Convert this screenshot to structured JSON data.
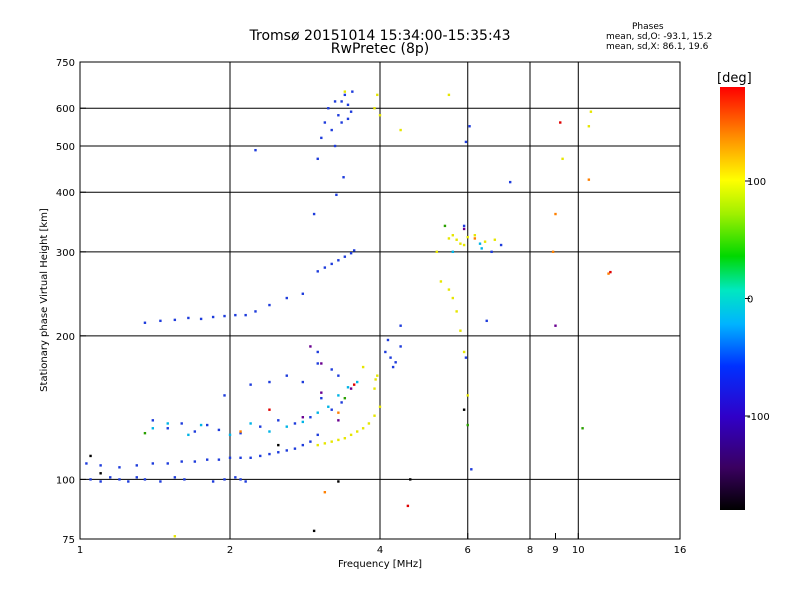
{
  "chart_data": {
    "type": "scatter",
    "title": "Tromsø 20151014 15:34:00-15:35:43",
    "subtitle": "RwPretec (8p)",
    "xlabel": "Frequency [MHz]",
    "ylabel": "Stationary phase Virtual Height [km]",
    "xscale": "log",
    "yscale": "log",
    "xlim": [
      1,
      16
    ],
    "ylim": [
      75,
      750
    ],
    "grid": true,
    "xticks": [
      1,
      2,
      4,
      6,
      8,
      9,
      10,
      16
    ],
    "xtick_labels": [
      "1",
      "2",
      "4",
      "6",
      "8",
      "9",
      "10",
      "16"
    ],
    "xgrid": [
      2,
      4,
      6,
      8,
      10
    ],
    "yticks": [
      75,
      100,
      200,
      300,
      400,
      500,
      600,
      750
    ],
    "ytick_labels": [
      "75",
      "100",
      "200",
      "300",
      "400",
      "500",
      "600",
      "750"
    ],
    "ygrid": [
      100,
      200,
      300,
      400,
      500,
      600
    ],
    "colorbar": {
      "label": "[deg]",
      "range": [
        -180,
        180
      ],
      "ticks": [
        100,
        0,
        -100
      ],
      "tick_labels": [
        "100",
        "0",
        "-100"
      ]
    },
    "phases": {
      "heading": "Phases",
      "line_o": "mean, sd,O: -93.1, 15.2",
      "line_x": "mean, sd,X:  86.1, 19.6"
    },
    "series": [
      {
        "color": "#1e3cdc",
        "points": [
          [
            1.03,
            108
          ],
          [
            1.1,
            107
          ],
          [
            1.2,
            106
          ],
          [
            1.3,
            107
          ],
          [
            1.4,
            108
          ],
          [
            1.5,
            108
          ],
          [
            1.6,
            109
          ],
          [
            1.7,
            109
          ],
          [
            1.8,
            110
          ],
          [
            1.9,
            110
          ],
          [
            2.0,
            111
          ],
          [
            2.1,
            111
          ],
          [
            2.2,
            111
          ],
          [
            2.3,
            112
          ],
          [
            2.4,
            113
          ],
          [
            2.5,
            114
          ],
          [
            2.6,
            115
          ],
          [
            2.7,
            116
          ],
          [
            2.8,
            118
          ],
          [
            2.9,
            120
          ],
          [
            3.0,
            124
          ],
          [
            1.05,
            100
          ],
          [
            1.1,
            99
          ],
          [
            1.15,
            101
          ],
          [
            1.2,
            100
          ],
          [
            1.25,
            99
          ],
          [
            1.3,
            101
          ],
          [
            1.35,
            100
          ],
          [
            1.45,
            99
          ],
          [
            1.55,
            101
          ],
          [
            1.62,
            100
          ],
          [
            1.85,
            99
          ],
          [
            1.95,
            100
          ],
          [
            2.05,
            101
          ],
          [
            2.1,
            100
          ],
          [
            2.15,
            99
          ],
          [
            1.35,
            213
          ],
          [
            1.45,
            215
          ],
          [
            1.55,
            216
          ],
          [
            1.65,
            218
          ],
          [
            1.75,
            217
          ],
          [
            1.85,
            219
          ],
          [
            1.95,
            220
          ],
          [
            2.05,
            221
          ],
          [
            2.15,
            221
          ],
          [
            2.25,
            225
          ],
          [
            2.4,
            232
          ],
          [
            2.6,
            240
          ],
          [
            2.8,
            245
          ],
          [
            3.0,
            273
          ],
          [
            3.1,
            278
          ],
          [
            3.2,
            283
          ],
          [
            3.3,
            288
          ],
          [
            3.4,
            293
          ],
          [
            3.5,
            298
          ],
          [
            3.55,
            302
          ],
          [
            3.0,
            470
          ],
          [
            3.05,
            520
          ],
          [
            3.1,
            560
          ],
          [
            3.15,
            600
          ],
          [
            3.2,
            540
          ],
          [
            3.25,
            500
          ],
          [
            3.3,
            580
          ],
          [
            3.35,
            620
          ],
          [
            3.4,
            640
          ],
          [
            3.45,
            610
          ],
          [
            3.5,
            590
          ],
          [
            3.52,
            650
          ],
          [
            3.35,
            560
          ],
          [
            3.25,
            620
          ],
          [
            3.45,
            570
          ],
          [
            3.27,
            395
          ],
          [
            3.38,
            430
          ],
          [
            2.95,
            360
          ],
          [
            2.25,
            490
          ],
          [
            4.1,
            185
          ],
          [
            4.2,
            180
          ],
          [
            4.3,
            176
          ],
          [
            4.4,
            190
          ],
          [
            4.15,
            196
          ],
          [
            4.25,
            172
          ],
          [
            4.4,
            210
          ],
          [
            6.05,
            550
          ],
          [
            5.95,
            510
          ],
          [
            5.9,
            340
          ],
          [
            5.95,
            180
          ],
          [
            6.1,
            105
          ],
          [
            6.55,
            215
          ],
          [
            6.7,
            300
          ],
          [
            7.3,
            420
          ],
          [
            7.0,
            310
          ],
          [
            1.4,
            133
          ],
          [
            1.5,
            128
          ],
          [
            1.6,
            131
          ],
          [
            1.7,
            126
          ],
          [
            1.8,
            130
          ],
          [
            1.9,
            127
          ],
          [
            2.1,
            125
          ],
          [
            2.3,
            129
          ],
          [
            2.5,
            133
          ],
          [
            2.7,
            131
          ],
          [
            2.9,
            135
          ],
          [
            3.05,
            148
          ],
          [
            3.2,
            140
          ],
          [
            3.35,
            145
          ],
          [
            3.0,
            175
          ],
          [
            3.2,
            170
          ],
          [
            3.3,
            165
          ],
          [
            2.6,
            165
          ],
          [
            2.4,
            160
          ],
          [
            2.2,
            158
          ],
          [
            1.95,
            150
          ],
          [
            2.8,
            160
          ],
          [
            3.0,
            185
          ]
        ]
      },
      {
        "color": "#00b4e6",
        "points": [
          [
            1.4,
            128
          ],
          [
            1.5,
            131
          ],
          [
            1.65,
            124
          ],
          [
            1.75,
            130
          ],
          [
            2.0,
            124
          ],
          [
            2.2,
            131
          ],
          [
            2.4,
            126
          ],
          [
            2.6,
            129
          ],
          [
            2.8,
            132
          ],
          [
            3.0,
            138
          ],
          [
            3.15,
            142
          ],
          [
            3.3,
            150
          ],
          [
            3.45,
            156
          ],
          [
            3.6,
            160
          ],
          [
            5.6,
            300
          ],
          [
            6.35,
            312
          ],
          [
            6.4,
            305
          ]
        ]
      },
      {
        "color": "#e6e600",
        "points": [
          [
            3.0,
            118
          ],
          [
            3.1,
            119
          ],
          [
            3.2,
            120
          ],
          [
            3.3,
            121
          ],
          [
            3.4,
            122
          ],
          [
            3.5,
            124
          ],
          [
            3.6,
            126
          ],
          [
            3.7,
            128
          ],
          [
            3.8,
            131
          ],
          [
            3.9,
            136
          ],
          [
            4.0,
            142
          ],
          [
            3.9,
            155
          ],
          [
            3.95,
            165
          ],
          [
            3.92,
            162
          ],
          [
            3.7,
            172
          ],
          [
            3.95,
            640
          ],
          [
            3.9,
            600
          ],
          [
            4.0,
            580
          ],
          [
            5.5,
            320
          ],
          [
            5.6,
            325
          ],
          [
            5.7,
            318
          ],
          [
            5.8,
            312
          ],
          [
            5.9,
            310
          ],
          [
            6.0,
            322
          ],
          [
            6.2,
            325
          ],
          [
            6.5,
            315
          ],
          [
            6.8,
            318
          ],
          [
            5.2,
            300
          ],
          [
            5.3,
            260
          ],
          [
            5.5,
            250
          ],
          [
            5.6,
            240
          ],
          [
            5.7,
            225
          ],
          [
            5.8,
            205
          ],
          [
            5.9,
            185
          ],
          [
            6.0,
            150
          ],
          [
            3.4,
            650
          ],
          [
            4.4,
            540
          ],
          [
            5.5,
            640
          ],
          [
            9.3,
            470
          ],
          [
            10.5,
            550
          ],
          [
            10.6,
            590
          ],
          [
            1.55,
            76
          ]
        ]
      },
      {
        "color": "#2aa000",
        "points": [
          [
            1.35,
            125
          ],
          [
            3.4,
            148
          ],
          [
            5.4,
            340
          ],
          [
            6.0,
            130
          ],
          [
            10.2,
            128
          ]
        ]
      },
      {
        "color": "#ff8000",
        "points": [
          [
            2.1,
            126
          ],
          [
            3.3,
            138
          ],
          [
            3.1,
            94
          ],
          [
            10.5,
            425
          ],
          [
            11.5,
            270
          ],
          [
            9.0,
            360
          ],
          [
            8.9,
            300
          ],
          [
            6.2,
            320
          ]
        ]
      },
      {
        "color": "#e00000",
        "points": [
          [
            2.4,
            140
          ],
          [
            3.55,
            158
          ],
          [
            4.55,
            88
          ],
          [
            9.2,
            560
          ],
          [
            11.6,
            272
          ]
        ]
      },
      {
        "color": "#6a0090",
        "points": [
          [
            2.8,
            135
          ],
          [
            3.05,
            152
          ],
          [
            3.3,
            133
          ],
          [
            3.5,
            155
          ],
          [
            9.0,
            210
          ],
          [
            5.9,
            335
          ],
          [
            3.05,
            175
          ],
          [
            2.9,
            190
          ]
        ]
      },
      {
        "color": "#000000",
        "points": [
          [
            1.05,
            112
          ],
          [
            2.5,
            118
          ],
          [
            2.95,
            78
          ],
          [
            3.3,
            99
          ],
          [
            4.6,
            100
          ],
          [
            5.9,
            140
          ],
          [
            1.1,
            103
          ]
        ]
      }
    ]
  }
}
